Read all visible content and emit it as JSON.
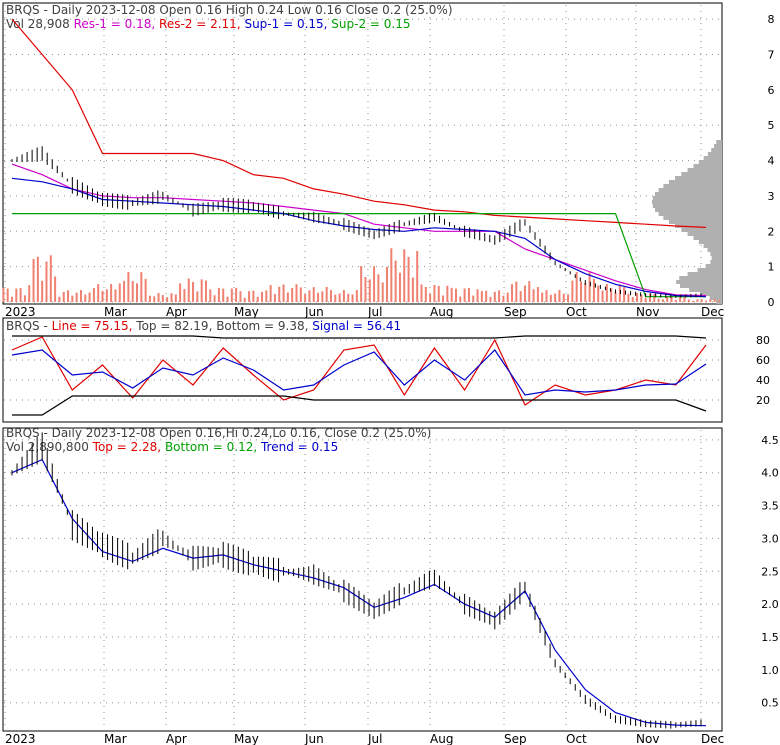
{
  "colors": {
    "price": "#000000",
    "res": "#e00000",
    "sup": "#00a000",
    "magenta": "#cc00cc",
    "blue": "#0000cc",
    "volume": "#f08070",
    "volume_profile": "#b0b0b0",
    "legend_label": "#606060",
    "grid": "#909090",
    "frame": "#000000"
  },
  "panels": [
    {
      "title_parts": [
        {
          "text": "BRQS - Daily 2023-12-08 Open 0.16  High 0.24  Low 0.16  Close 0.2 (25.0%)",
          "color": "#404040"
        }
      ],
      "subtitle_parts": [
        {
          "text": "Vol 28,908  ",
          "color": "#404040"
        },
        {
          "text": "Res-1 = 0.18, ",
          "color": "#cc00cc"
        },
        {
          "text": "Res-2 = 2.11, ",
          "color": "#e00000"
        },
        {
          "text": "Sup-1 = 0.15, ",
          "color": "#0000cc"
        },
        {
          "text": "Sup-2 = 0.15",
          "color": "#00a000"
        }
      ]
    },
    {
      "title_parts": [
        {
          "text": "BRQS - ",
          "color": "#404040"
        },
        {
          "text": "Line = 75.15, ",
          "color": "#e00000"
        },
        {
          "text": "Top = 82.19, ",
          "color": "#404040"
        },
        {
          "text": "Bottom = 9.38, ",
          "color": "#404040"
        },
        {
          "text": "Signal = 56.41",
          "color": "#0000cc"
        }
      ],
      "subtitle_parts": []
    },
    {
      "title_parts": [
        {
          "text": "BRQS - Daily 2023-12-08 Open 0.16,Hi 0.24,Lo 0.16, Close 0.2 (25.0%)",
          "color": "#404040"
        }
      ],
      "subtitle_parts": [
        {
          "text": "Vol 2,890,800  ",
          "color": "#404040"
        },
        {
          "text": "Top = 2.28, ",
          "color": "#e00000"
        },
        {
          "text": "Bottom = 0.12, ",
          "color": "#00a000"
        },
        {
          "text": "Trend = 0.15",
          "color": "#0000cc"
        }
      ]
    }
  ],
  "chart_data": [
    {
      "type": "line",
      "subtype": "candlestick-with-volume",
      "x_ticks": [
        "2023",
        "Mar",
        "Apr",
        "May",
        "Jun",
        "Jul",
        "Aug",
        "Sep",
        "Oct",
        "Nov",
        "Dec"
      ],
      "y_ticks": [
        "0",
        "1",
        "2",
        "3",
        "4",
        "5",
        "6",
        "7",
        "8"
      ],
      "ylim": [
        0,
        8.4
      ],
      "series": [
        {
          "name": "Res-1",
          "values": [
            3.9,
            3.6,
            3.2,
            3.0,
            2.95,
            2.95,
            2.9,
            2.85,
            2.8,
            2.7,
            2.6,
            2.5,
            2.2,
            2.1,
            2.0,
            2.0,
            2.0,
            1.5,
            1.2,
            0.9,
            0.6,
            0.35,
            0.2,
            0.18
          ]
        },
        {
          "name": "Res-2",
          "values": [
            8.0,
            7.0,
            6.0,
            4.2,
            4.2,
            4.2,
            4.2,
            4.0,
            3.6,
            3.5,
            3.2,
            3.05,
            2.85,
            2.75,
            2.6,
            2.55,
            2.45,
            2.4,
            2.35,
            2.3,
            2.25,
            2.2,
            2.15,
            2.11
          ]
        },
        {
          "name": "Sup-2",
          "values": [
            2.5,
            2.5,
            2.5,
            2.5,
            2.5,
            2.5,
            2.5,
            2.5,
            2.5,
            2.5,
            2.5,
            2.5,
            2.5,
            2.5,
            2.5,
            2.5,
            2.5,
            2.5,
            2.5,
            2.5,
            2.5,
            0.15,
            0.15,
            0.15
          ]
        },
        {
          "name": "Sup-1",
          "values": [
            3.5,
            3.4,
            3.2,
            2.9,
            2.85,
            2.8,
            2.75,
            2.7,
            2.6,
            2.5,
            2.3,
            2.15,
            2.05,
            2.0,
            2.1,
            2.05,
            2.0,
            1.8,
            1.2,
            0.8,
            0.5,
            0.3,
            0.18,
            0.15
          ]
        },
        {
          "name": "Close",
          "values": [
            4.0,
            4.2,
            3.3,
            2.9,
            2.8,
            3.0,
            2.6,
            2.75,
            2.7,
            2.5,
            2.4,
            2.2,
            1.9,
            2.2,
            2.4,
            2.0,
            1.75,
            2.25,
            1.1,
            0.55,
            0.3,
            0.2,
            0.16,
            0.2
          ]
        }
      ],
      "volume": [
        0.25,
        0.8,
        0.2,
        0.3,
        0.5,
        0.15,
        0.4,
        0.25,
        0.2,
        0.3,
        0.25,
        0.2,
        0.6,
        0.9,
        0.3,
        0.25,
        0.2,
        0.35,
        0.2,
        0.5,
        0.3,
        0.15,
        0.1,
        0.05
      ]
    },
    {
      "type": "line",
      "x_ticks": [],
      "y_ticks": [
        "20",
        "40",
        "60",
        "80"
      ],
      "ylim": [
        0,
        100
      ],
      "series": [
        {
          "name": "Line",
          "values": [
            70,
            83,
            30,
            55,
            22,
            60,
            35,
            72,
            45,
            20,
            30,
            70,
            75,
            25,
            72,
            30,
            80,
            15,
            35,
            25,
            30,
            40,
            35,
            75
          ]
        },
        {
          "name": "Signal",
          "values": [
            65,
            70,
            45,
            48,
            32,
            52,
            45,
            62,
            50,
            30,
            35,
            55,
            68,
            35,
            60,
            40,
            70,
            25,
            30,
            28,
            30,
            35,
            36,
            56
          ]
        },
        {
          "name": "Top",
          "values": [
            84,
            84,
            84,
            84,
            84,
            84,
            84,
            82,
            82,
            82,
            82,
            82,
            82,
            82,
            82,
            82,
            82,
            84,
            84,
            84,
            84,
            84,
            84,
            82
          ]
        },
        {
          "name": "Bottom",
          "values": [
            5,
            5,
            24,
            24,
            24,
            24,
            24,
            24,
            24,
            24,
            20,
            20,
            20,
            20,
            20,
            20,
            20,
            20,
            20,
            20,
            20,
            20,
            20,
            9
          ]
        }
      ]
    },
    {
      "type": "line",
      "subtype": "candlestick",
      "x_ticks": [
        "2023",
        "Mar",
        "Apr",
        "May",
        "Jun",
        "Jul",
        "Aug",
        "Sep",
        "Oct",
        "Nov",
        "Dec"
      ],
      "y_ticks": [
        "0.5",
        "1.0",
        "1.5",
        "2.0",
        "2.5",
        "3.0",
        "3.5",
        "4.0",
        "4.5"
      ],
      "ylim": [
        0.1,
        4.65
      ],
      "series": [
        {
          "name": "Close",
          "values": [
            4.0,
            4.4,
            3.2,
            2.9,
            2.7,
            3.0,
            2.7,
            2.75,
            2.6,
            2.5,
            2.45,
            2.2,
            1.9,
            2.2,
            2.4,
            2.0,
            1.75,
            2.25,
            1.1,
            0.55,
            0.25,
            0.18,
            0.16,
            0.2
          ]
        },
        {
          "name": "Trend",
          "values": [
            4.0,
            4.2,
            3.3,
            2.8,
            2.65,
            2.85,
            2.7,
            2.75,
            2.6,
            2.5,
            2.4,
            2.25,
            1.95,
            2.1,
            2.3,
            2.0,
            1.8,
            2.2,
            1.3,
            0.7,
            0.35,
            0.2,
            0.16,
            0.15
          ]
        }
      ]
    }
  ]
}
